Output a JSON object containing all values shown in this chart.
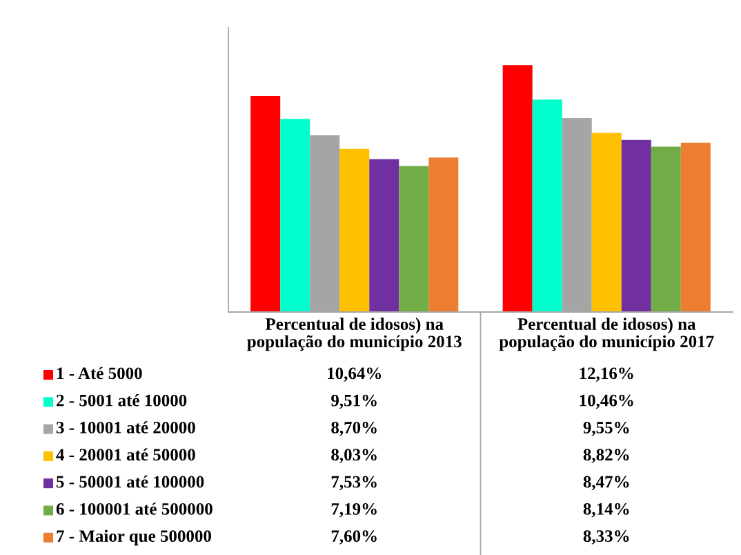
{
  "chart_data": {
    "type": "bar",
    "categories": [
      "Percentual de idosos) na população do município 2013",
      "Percentual de idosos) na população do município 2017"
    ],
    "series": [
      {
        "name": "1 - Até 5000",
        "color": "#ff0000",
        "values": [
          10.64,
          12.16
        ],
        "value_labels": [
          "10,64%",
          "12,16%"
        ]
      },
      {
        "name": "2 - 5001 até 10000",
        "color": "#00ffcc",
        "values": [
          9.51,
          10.46
        ],
        "value_labels": [
          "9,51%",
          "10,46%"
        ]
      },
      {
        "name": "3 - 10001 até 20000",
        "color": "#a5a5a5",
        "values": [
          8.7,
          9.55
        ],
        "value_labels": [
          "8,70%",
          "9,55%"
        ]
      },
      {
        "name": "4 - 20001 até 50000",
        "color": "#ffc000",
        "values": [
          8.03,
          8.82
        ],
        "value_labels": [
          "8,03%",
          "8,82%"
        ]
      },
      {
        "name": "5 - 50001 até 100000",
        "color": "#7030a0",
        "values": [
          7.53,
          8.47
        ],
        "value_labels": [
          "7,53%",
          "8,47%"
        ]
      },
      {
        "name": "6 - 100001 até 500000",
        "color": "#70ad47",
        "values": [
          7.19,
          8.14
        ],
        "value_labels": [
          "7,19%",
          "8,14%"
        ]
      },
      {
        "name": "7 - Maior que 500000",
        "color": "#ed7d31",
        "values": [
          7.6,
          8.33
        ],
        "value_labels": [
          "7,60%",
          "8,33%"
        ]
      }
    ],
    "ylim": [
      0,
      14
    ],
    "tick_labels": "x",
    "legend": "bottom left",
    "grid": false
  }
}
